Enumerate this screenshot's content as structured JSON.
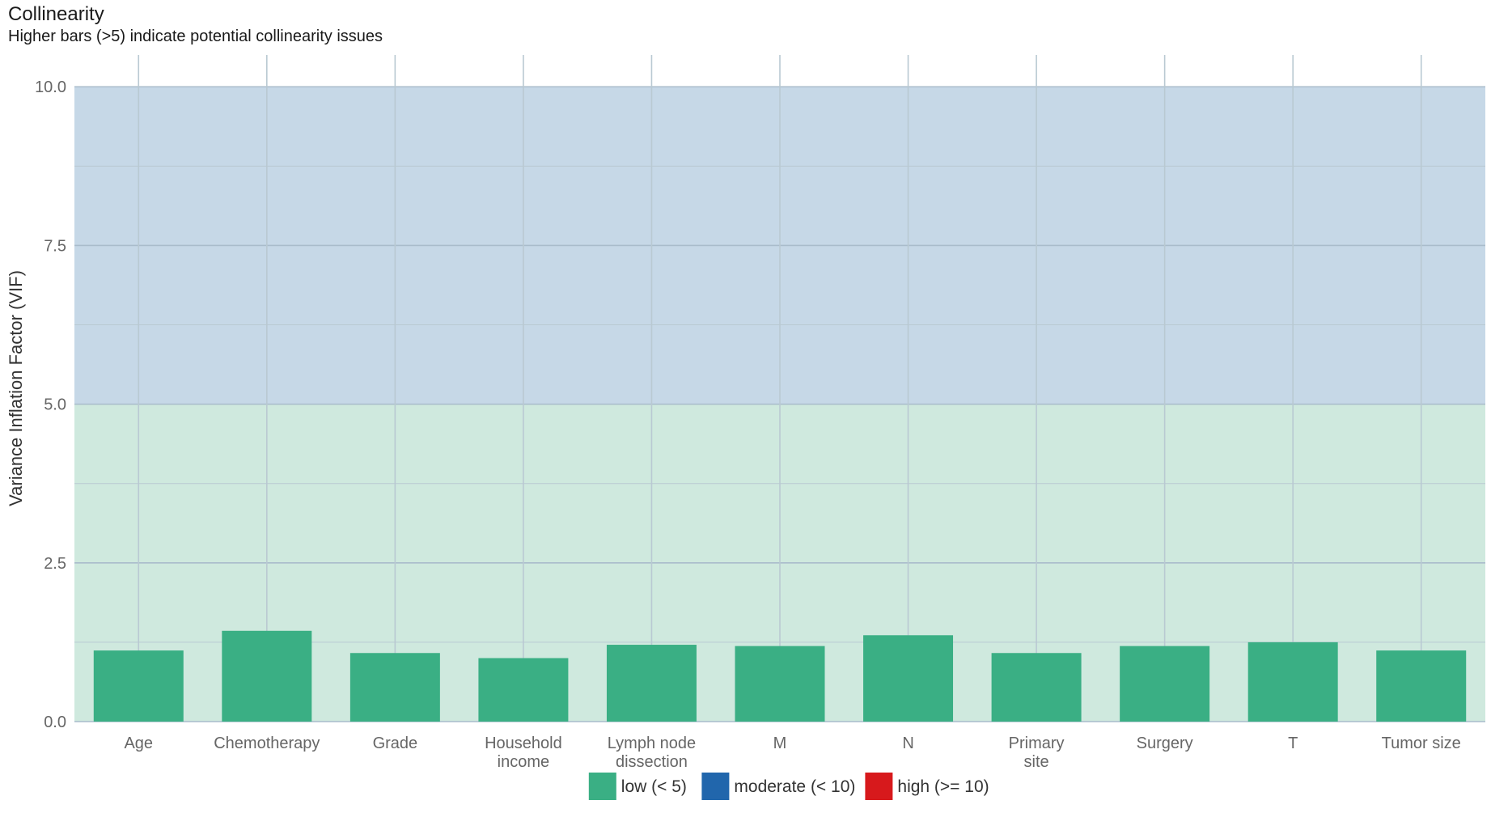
{
  "title": "Collinearity",
  "subtitle": "Higher bars (>5) indicate potential collinearity issues",
  "chart_data": {
    "type": "bar",
    "title": "Collinearity",
    "subtitle": "Higher bars (>5) indicate potential collinearity issues",
    "ylabel": "Variance Inflation Factor (VIF)",
    "xlabel": "",
    "categories": [
      "Age",
      "Chemotherapy",
      "Grade",
      "Household\nincome",
      "Lymph node\ndissection",
      "M",
      "N",
      "Primary\nsite",
      "Surgery",
      "T",
      "Tumor size"
    ],
    "values": [
      1.12,
      1.43,
      1.08,
      1.0,
      1.21,
      1.19,
      1.36,
      1.08,
      1.19,
      1.25,
      1.12
    ],
    "ylim": [
      0,
      10.5
    ],
    "yticks": [
      "0.0",
      "2.5",
      "5.0",
      "7.5",
      "10.0"
    ],
    "bands": [
      {
        "name": "low",
        "from": 0,
        "to": 5,
        "color": "#cfe9de"
      },
      {
        "name": "moderate",
        "from": 5,
        "to": 10,
        "color": "#c6d8e7"
      }
    ],
    "bar_color": "#3aaf84",
    "grid": true,
    "legend": {
      "placement": "bottom",
      "items": [
        {
          "label": "low (< 5)",
          "color": "#3aaf84"
        },
        {
          "label": "moderate (< 10)",
          "color": "#2166ac"
        },
        {
          "label": "high (>= 10)",
          "color": "#d7191c"
        }
      ]
    }
  }
}
